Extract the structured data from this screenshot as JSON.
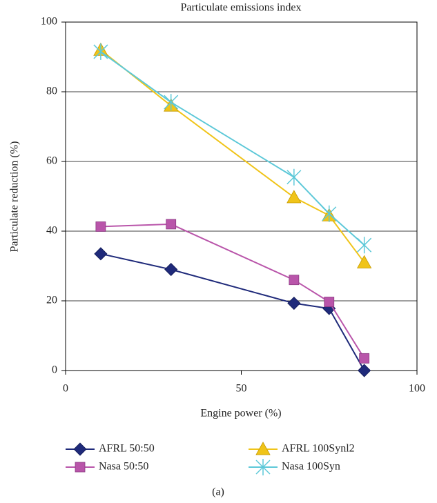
{
  "chart_data": {
    "type": "line",
    "title": "Particulate emissions index",
    "x_label": "Engine power (%)",
    "y_label": "Particulate reduction (%)",
    "caption": "(a)",
    "xlim": [
      0,
      100
    ],
    "xticks": [
      0,
      50,
      100
    ],
    "ylim": [
      0,
      100
    ],
    "yticks": [
      0,
      20,
      40,
      60,
      80,
      100
    ],
    "grid": true,
    "legend": "bottom",
    "series": [
      {
        "name": "AFRL 50:50",
        "color": "#1f2a7a",
        "marker": "diamond",
        "x": [
          10,
          30,
          65,
          75,
          85
        ],
        "values": [
          33.5,
          29,
          19.3,
          17.8,
          0
        ]
      },
      {
        "name": "Nasa 50:50",
        "color": "#b955aa",
        "marker": "square",
        "x": [
          10,
          30,
          65,
          75,
          85
        ],
        "values": [
          41.3,
          42,
          26,
          19.7,
          3.5
        ]
      },
      {
        "name": "AFRL 100Synl2",
        "color": "#f0c419",
        "marker": "triangle",
        "x": [
          10,
          30,
          65,
          75,
          85
        ],
        "values": [
          92,
          76,
          49.7,
          44.5,
          31
        ]
      },
      {
        "name": "Nasa 100Syn",
        "color": "#5cc8d8",
        "marker": "cross",
        "x": [
          10,
          30,
          65,
          75,
          85
        ],
        "values": [
          91.5,
          77,
          55.5,
          45,
          36
        ]
      }
    ]
  }
}
